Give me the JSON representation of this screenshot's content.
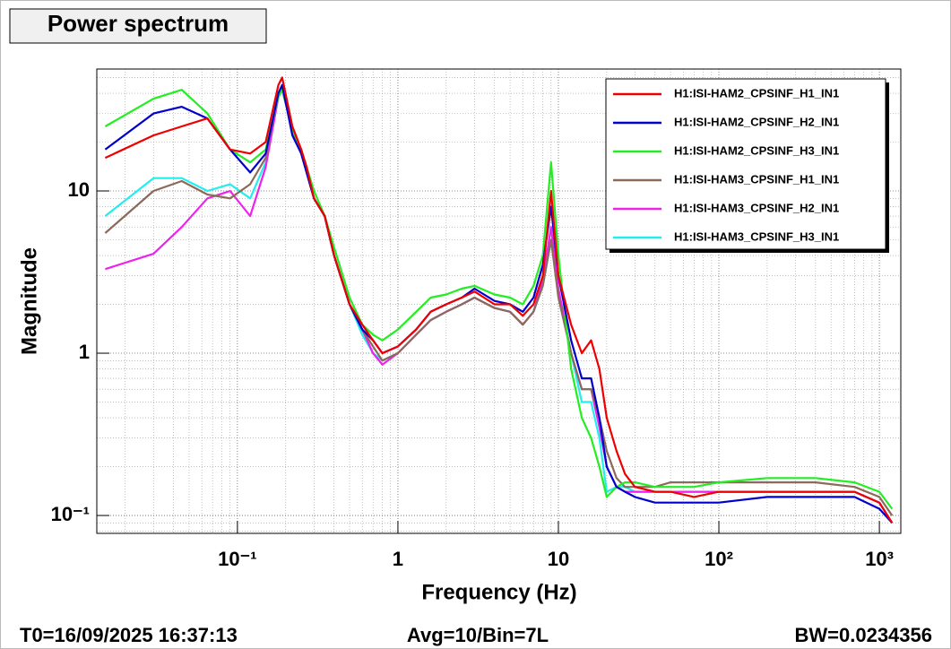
{
  "chart_data": {
    "type": "line",
    "title": "Power spectrum",
    "x_label": "Frequency (Hz)",
    "y_label": "Magnitude",
    "log_x": true,
    "log_y": true,
    "grid": true,
    "legend_position": "top-right",
    "annotations": [
      "T0=16/09/2025 16:37:13",
      "Avg=10/Bin=7L",
      "BW=0.0234356"
    ],
    "xlim": [
      0.0133,
      1360
    ],
    "ylim": [
      0.0776,
      56.4
    ],
    "xticks": [
      {
        "value": 0.1,
        "label": "10⁻¹"
      },
      1,
      10,
      {
        "value": 100,
        "label": "10²"
      },
      {
        "value": 1000,
        "label": "10³"
      }
    ],
    "yticks": [
      {
        "value": 0.1,
        "label": "10⁻¹"
      },
      1,
      10
    ],
    "x": [
      0.015,
      0.03,
      0.045,
      0.065,
      0.09,
      0.12,
      0.15,
      0.18,
      0.19,
      0.22,
      0.25,
      0.27,
      0.3,
      0.35,
      0.4,
      0.5,
      0.6,
      0.7,
      0.8,
      1,
      1.3,
      1.6,
      2,
      2.5,
      3,
      4,
      5,
      6,
      7,
      8,
      9,
      10,
      12,
      14,
      16,
      18,
      20,
      23,
      26,
      30,
      40,
      50,
      70,
      100,
      200,
      400,
      700,
      1000,
      1200
    ],
    "series": [
      {
        "name": "H1:ISI-HAM2_CPSINF_H1_IN1",
        "color": "#ee0000",
        "values": [
          16,
          22,
          25,
          28,
          18,
          17,
          20,
          45,
          50,
          25,
          18,
          14,
          9,
          7,
          4,
          2,
          1.5,
          1.2,
          1.0,
          1.1,
          1.4,
          1.8,
          2,
          2.2,
          2.4,
          2.0,
          2.0,
          1.7,
          2,
          3,
          10,
          3,
          1.5,
          1.0,
          1.2,
          0.8,
          0.4,
          0.25,
          0.18,
          0.15,
          0.14,
          0.14,
          0.13,
          0.14,
          0.14,
          0.14,
          0.14,
          0.12,
          0.09
        ]
      },
      {
        "name": "H1:ISI-HAM2_CPSINF_H2_IN1",
        "color": "#0000cc",
        "values": [
          18,
          30,
          33,
          28,
          18,
          13,
          17,
          40,
          45,
          22,
          17,
          13,
          9,
          7,
          4,
          2,
          1.4,
          1.2,
          1.0,
          1.1,
          1.4,
          1.8,
          2,
          2.2,
          2.5,
          2.1,
          2.0,
          1.8,
          2.2,
          3.5,
          8,
          3,
          1.2,
          0.7,
          0.7,
          0.4,
          0.2,
          0.15,
          0.14,
          0.13,
          0.12,
          0.12,
          0.12,
          0.12,
          0.13,
          0.13,
          0.13,
          0.11,
          0.09
        ]
      },
      {
        "name": "H1:ISI-HAM2_CPSINF_H3_IN1",
        "color": "#22ee22",
        "values": [
          25,
          37,
          42,
          30,
          18,
          15,
          18,
          38,
          42,
          24,
          18,
          14,
          10,
          7,
          4.5,
          2.2,
          1.5,
          1.3,
          1.2,
          1.4,
          1.8,
          2.2,
          2.3,
          2.5,
          2.6,
          2.3,
          2.2,
          2.0,
          2.6,
          4,
          15,
          4,
          0.8,
          0.4,
          0.3,
          0.2,
          0.13,
          0.15,
          0.16,
          0.16,
          0.15,
          0.15,
          0.15,
          0.16,
          0.17,
          0.17,
          0.16,
          0.14,
          0.11
        ]
      },
      {
        "name": "H1:ISI-HAM3_CPSINF_H1_IN1",
        "color": "#8c6a5a",
        "values": [
          5.5,
          10,
          11.5,
          9.5,
          9,
          11,
          16,
          40,
          44,
          24,
          17,
          13,
          9,
          7,
          4,
          2,
          1.4,
          1.1,
          0.9,
          1.0,
          1.3,
          1.6,
          1.8,
          2.0,
          2.2,
          1.9,
          1.8,
          1.5,
          1.8,
          2.6,
          5,
          2.2,
          1.0,
          0.6,
          0.6,
          0.4,
          0.25,
          0.17,
          0.15,
          0.15,
          0.15,
          0.16,
          0.16,
          0.16,
          0.16,
          0.16,
          0.15,
          0.13,
          0.1
        ]
      },
      {
        "name": "H1:ISI-HAM3_CPSINF_H2_IN1",
        "color": "#ee22ee",
        "values": [
          3.3,
          4.1,
          6,
          9,
          10,
          7,
          14,
          38,
          42,
          24,
          17,
          13,
          9,
          7,
          4,
          2,
          1.4,
          1.0,
          0.85,
          1.0,
          1.3,
          1.6,
          1.8,
          2.0,
          2.2,
          1.9,
          1.8,
          1.5,
          1.8,
          2.8,
          6,
          2.5,
          1.0,
          0.6,
          0.6,
          0.35,
          0.2,
          0.15,
          0.14,
          0.14,
          0.14,
          0.14,
          0.14,
          0.14,
          0.14,
          0.14,
          0.14,
          0.12,
          0.09
        ]
      },
      {
        "name": "H1:ISI-HAM3_CPSINF_H3_IN1",
        "color": "#22eeee",
        "values": [
          7,
          12,
          12,
          10,
          11,
          9,
          15,
          38,
          42,
          24,
          17,
          13,
          9,
          7,
          4,
          2,
          1.3,
          1.0,
          0.9,
          1.0,
          1.3,
          1.6,
          1.8,
          2.0,
          2.2,
          1.9,
          1.8,
          1.5,
          1.8,
          2.6,
          5,
          2.3,
          1.0,
          0.5,
          0.5,
          0.3,
          0.14,
          0.15,
          0.15,
          0.14,
          0.14,
          0.14,
          0.14,
          0.14,
          0.14,
          0.14,
          0.14,
          0.12,
          0.09
        ]
      }
    ]
  }
}
